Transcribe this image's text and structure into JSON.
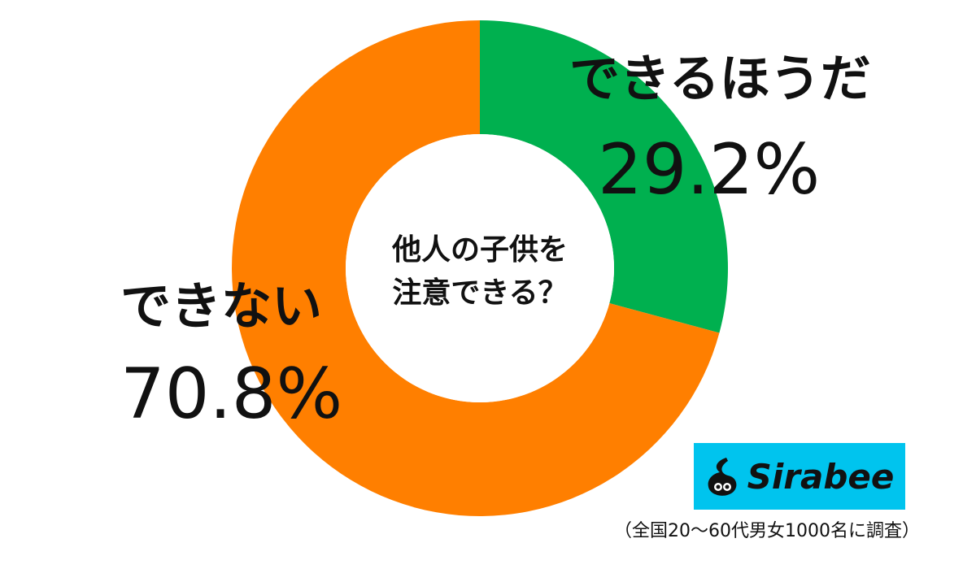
{
  "chart_data": {
    "type": "pie",
    "variant": "donut",
    "title": "他人の子供を注意できる？",
    "title_lines": [
      "他人の子供を",
      "注意できる？"
    ],
    "slices": [
      {
        "label": "できるほうだ",
        "value": 29.2,
        "display": "29.2%",
        "color": "#00b04f"
      },
      {
        "label": "できない",
        "value": 70.8,
        "display": "70.8%",
        "color": "#ff7f00"
      }
    ]
  },
  "branding": {
    "logo_text": "Sirabee",
    "logo_bg": "#00c4ee"
  },
  "footnote": "（全国20～60代男女1000名に調査）"
}
